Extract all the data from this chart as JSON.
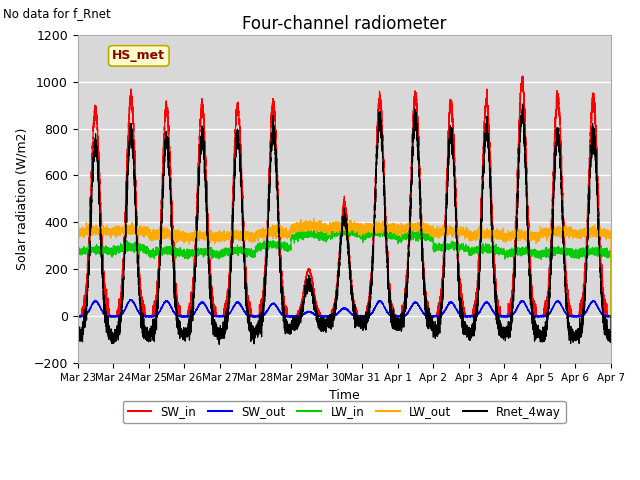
{
  "title": "Four-channel radiometer",
  "subtitle": "No data for f_Rnet",
  "xlabel": "Time",
  "ylabel": "Solar radiation (W/m2)",
  "ylim": [
    -200,
    1200
  ],
  "xlim": [
    0,
    15
  ],
  "x_tick_labels": [
    "Mar 23",
    "Mar 24",
    "Mar 25",
    "Mar 26",
    "Mar 27",
    "Mar 28",
    "Mar 29",
    "Mar 30",
    "Mar 31",
    "Apr 1",
    "Apr 2",
    "Apr 3",
    "Apr 4",
    "Apr 5",
    "Apr 6",
    "Apr 7"
  ],
  "yticks": [
    -200,
    0,
    200,
    400,
    600,
    800,
    1000,
    1200
  ],
  "station_label": "HS_met",
  "legend_entries": [
    "SW_in",
    "SW_out",
    "LW_in",
    "LW_out",
    "Rnet_4way"
  ],
  "legend_colors": [
    "#ff0000",
    "#0000ff",
    "#00cc00",
    "#ffaa00",
    "#000000"
  ],
  "figure_bg": "#ffffff",
  "axes_bg": "#d8d8d8",
  "grid_color": "#ffffff",
  "n_days": 15,
  "sw_in_peaks": [
    880,
    930,
    895,
    890,
    890,
    900,
    200,
    480,
    920,
    940,
    900,
    920,
    1000,
    930,
    930
  ],
  "sw_out_peaks": [
    65,
    70,
    65,
    60,
    60,
    55,
    20,
    35,
    65,
    60,
    60,
    60,
    65,
    65,
    65
  ],
  "lw_in_base": [
    270,
    280,
    265,
    260,
    265,
    290,
    335,
    345,
    340,
    330,
    285,
    272,
    263,
    263,
    263
  ],
  "lw_out_base": [
    355,
    360,
    340,
    335,
    335,
    350,
    375,
    375,
    370,
    368,
    352,
    342,
    338,
    352,
    348
  ]
}
